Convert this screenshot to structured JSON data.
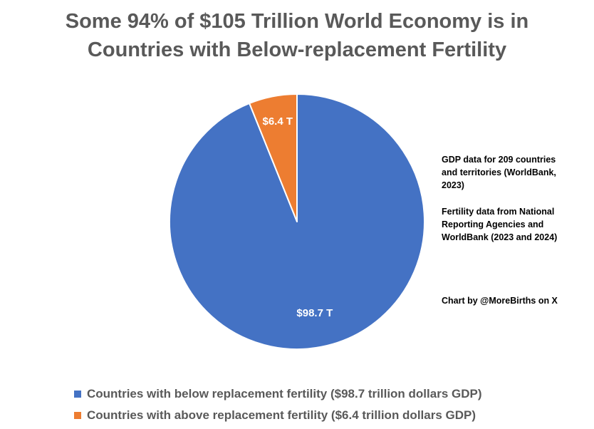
{
  "chart_data": {
    "type": "pie",
    "title_lines": [
      "Some 94% of $105 Trillion World Economy is in",
      "Countries with Below-replacement Fertility"
    ],
    "slices": [
      {
        "label": "Countries with below replacement fertility ($98.7 trillion dollars GDP)",
        "value": 98.7,
        "data_label": "$98.7 T",
        "color": "#4472C4"
      },
      {
        "label": "Countries with above replacement fertility ($6.4 trillion dollars GDP)",
        "value": 6.4,
        "data_label": "$6.4 T",
        "color": "#ED7D31"
      }
    ],
    "legend_position": "bottom-left",
    "start_angle": "12 o'clock, clockwise"
  },
  "annotations": {
    "gdp_note": [
      "GDP data for 209 countries",
      "and territories (WorldBank,",
      "2023)"
    ],
    "fertility_note": [
      "Fertility data from National",
      "Reporting Agencies and",
      "WorldBank (2023 and 2024)"
    ],
    "credit": "Chart by @MoreBirths on X"
  }
}
